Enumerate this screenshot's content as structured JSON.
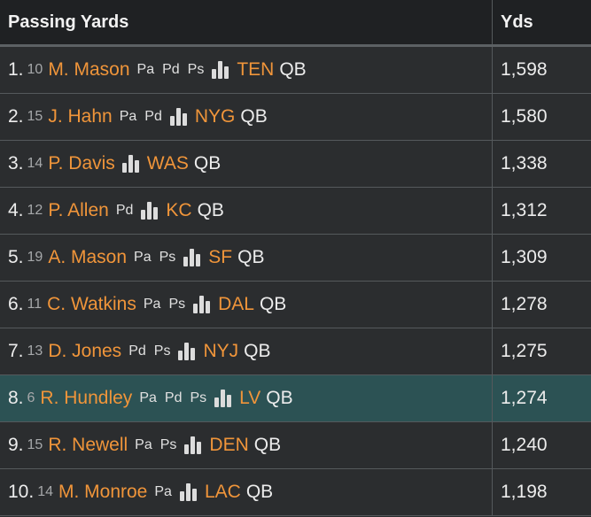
{
  "header": {
    "title": "Passing Yards",
    "yds_label": "Yds"
  },
  "rows": [
    {
      "rank": "1.",
      "num": "10",
      "name": "M. Mason",
      "tags": [
        "Pa",
        "Pd",
        "Ps"
      ],
      "team": "TEN",
      "pos": "QB",
      "yds": "1,598",
      "highlight": false
    },
    {
      "rank": "2.",
      "num": "15",
      "name": "J. Hahn",
      "tags": [
        "Pa",
        "Pd"
      ],
      "team": "NYG",
      "pos": "QB",
      "yds": "1,580",
      "highlight": false
    },
    {
      "rank": "3.",
      "num": "14",
      "name": "P. Davis",
      "tags": [],
      "team": "WAS",
      "pos": "QB",
      "yds": "1,338",
      "highlight": false
    },
    {
      "rank": "4.",
      "num": "12",
      "name": "P. Allen",
      "tags": [
        "Pd"
      ],
      "team": "KC",
      "pos": "QB",
      "yds": "1,312",
      "highlight": false
    },
    {
      "rank": "5.",
      "num": "19",
      "name": "A. Mason",
      "tags": [
        "Pa",
        "Ps"
      ],
      "team": "SF",
      "pos": "QB",
      "yds": "1,309",
      "highlight": false
    },
    {
      "rank": "6.",
      "num": "11",
      "name": "C. Watkins",
      "tags": [
        "Pa",
        "Ps"
      ],
      "team": "DAL",
      "pos": "QB",
      "yds": "1,278",
      "highlight": false
    },
    {
      "rank": "7.",
      "num": "13",
      "name": "D. Jones",
      "tags": [
        "Pd",
        "Ps"
      ],
      "team": "NYJ",
      "pos": "QB",
      "yds": "1,275",
      "highlight": false
    },
    {
      "rank": "8.",
      "num": "6",
      "name": "R. Hundley",
      "tags": [
        "Pa",
        "Pd",
        "Ps"
      ],
      "team": "LV",
      "pos": "QB",
      "yds": "1,274",
      "highlight": true
    },
    {
      "rank": "9.",
      "num": "15",
      "name": "R. Newell",
      "tags": [
        "Pa",
        "Ps"
      ],
      "team": "DEN",
      "pos": "QB",
      "yds": "1,240",
      "highlight": false
    },
    {
      "rank": "10.",
      "num": "14",
      "name": "M. Monroe",
      "tags": [
        "Pa"
      ],
      "team": "LAC",
      "pos": "QB",
      "yds": "1,198",
      "highlight": false
    }
  ]
}
